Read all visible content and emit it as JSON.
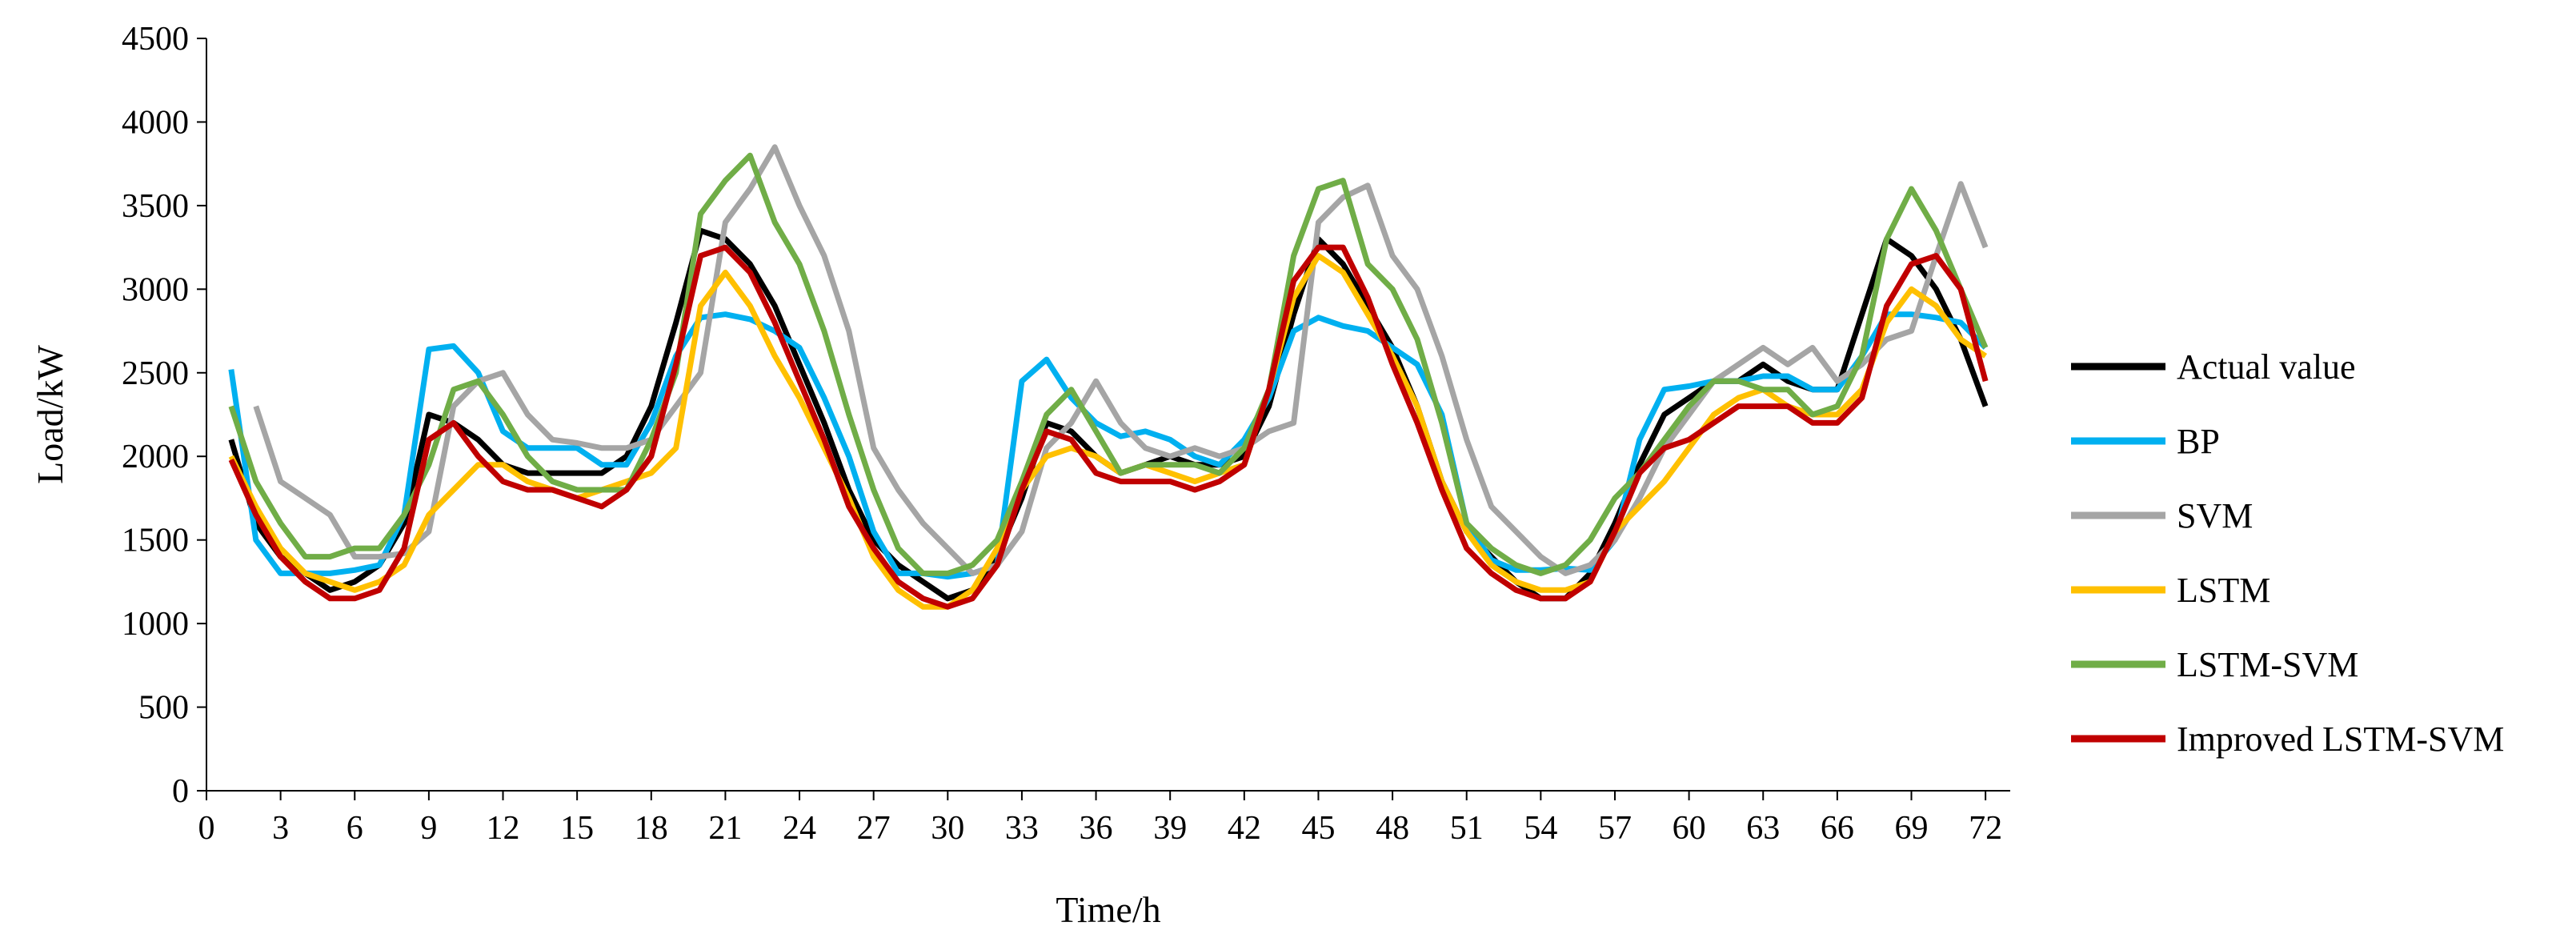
{
  "chart_data": {
    "type": "line",
    "title": "",
    "xlabel": "Time/h",
    "ylabel": "Load/kW",
    "xlim": [
      0,
      73
    ],
    "ylim": [
      0,
      4500
    ],
    "xticks": [
      0,
      3,
      6,
      9,
      12,
      15,
      18,
      21,
      24,
      27,
      30,
      33,
      36,
      39,
      42,
      45,
      48,
      51,
      54,
      57,
      60,
      63,
      66,
      69,
      72
    ],
    "yticks": [
      0,
      500,
      1000,
      1500,
      2000,
      2500,
      3000,
      3500,
      4000,
      4500
    ],
    "grid": false,
    "legend_position": "right",
    "x": [
      1,
      2,
      3,
      4,
      5,
      6,
      7,
      8,
      9,
      10,
      11,
      12,
      13,
      14,
      15,
      16,
      17,
      18,
      19,
      20,
      21,
      22,
      23,
      24,
      25,
      26,
      27,
      28,
      29,
      30,
      31,
      32,
      33,
      34,
      35,
      36,
      37,
      38,
      39,
      40,
      41,
      42,
      43,
      44,
      45,
      46,
      47,
      48,
      49,
      50,
      51,
      52,
      53,
      54,
      55,
      56,
      57,
      58,
      59,
      60,
      61,
      62,
      63,
      64,
      65,
      66,
      67,
      68,
      69,
      70,
      71,
      72
    ],
    "series": [
      {
        "name": "Actual value",
        "color": "#000000",
        "values": [
          2100,
          1600,
          1400,
          1300,
          1200,
          1250,
          1350,
          1600,
          2250,
          2200,
          2100,
          1950,
          1900,
          1900,
          1900,
          1900,
          2000,
          2300,
          2800,
          3350,
          3300,
          3150,
          2900,
          2550,
          2200,
          1800,
          1500,
          1350,
          1250,
          1150,
          1200,
          1400,
          1750,
          2200,
          2150,
          2000,
          1900,
          1950,
          2000,
          1950,
          1950,
          2000,
          2300,
          2850,
          3300,
          3150,
          2900,
          2650,
          2300,
          1850,
          1550,
          1400,
          1250,
          1150,
          1150,
          1300,
          1600,
          1950,
          2250,
          2350,
          2450,
          2450,
          2550,
          2450,
          2400,
          2400,
          2850,
          3300,
          3200,
          3000,
          2700,
          2300
        ]
      },
      {
        "name": "BP",
        "color": "#00B0F0",
        "values": [
          2520,
          1500,
          1300,
          1300,
          1300,
          1320,
          1350,
          1650,
          2640,
          2660,
          2500,
          2150,
          2050,
          2050,
          2050,
          1950,
          1950,
          2200,
          2600,
          2830,
          2850,
          2820,
          2750,
          2650,
          2350,
          2000,
          1550,
          1300,
          1300,
          1280,
          1300,
          1350,
          2450,
          2580,
          2350,
          2200,
          2120,
          2150,
          2100,
          2000,
          1950,
          2100,
          2350,
          2750,
          2830,
          2780,
          2750,
          2650,
          2550,
          2250,
          1600,
          1380,
          1320,
          1320,
          1330,
          1320,
          1500,
          2100,
          2400,
          2420,
          2450,
          2450,
          2480,
          2480,
          2400,
          2400,
          2600,
          2850,
          2850,
          2830,
          2800,
          2650
        ]
      },
      {
        "name": "SVM",
        "color": "#A5A5A5",
        "values": [
          null,
          2300,
          1850,
          1750,
          1650,
          1400,
          1400,
          1420,
          1550,
          2300,
          2450,
          2500,
          2250,
          2100,
          2080,
          2050,
          2050,
          2100,
          2300,
          2500,
          3400,
          3600,
          3850,
          3500,
          3200,
          2750,
          2050,
          1800,
          1600,
          1450,
          1300,
          1350,
          1550,
          2050,
          2200,
          2450,
          2200,
          2050,
          2000,
          2050,
          2000,
          2050,
          2150,
          2200,
          3400,
          3550,
          3620,
          3200,
          3000,
          2600,
          2100,
          1700,
          1550,
          1400,
          1300,
          1350,
          1500,
          1750,
          2050,
          2250,
          2450,
          2550,
          2650,
          2550,
          2650,
          2450,
          2550,
          2700,
          2750,
          3200,
          3630,
          3250
        ]
      },
      {
        "name": "LSTM",
        "color": "#FFC000",
        "values": [
          2000,
          1700,
          1450,
          1300,
          1250,
          1200,
          1250,
          1350,
          1650,
          1800,
          1950,
          1950,
          1850,
          1800,
          1750,
          1800,
          1850,
          1900,
          2050,
          2900,
          3100,
          2900,
          2600,
          2350,
          2050,
          1750,
          1400,
          1200,
          1100,
          1100,
          1200,
          1450,
          1800,
          2000,
          2050,
          2000,
          1900,
          1950,
          1900,
          1850,
          1900,
          1950,
          2400,
          2950,
          3200,
          3100,
          2850,
          2600,
          2300,
          1850,
          1550,
          1350,
          1250,
          1200,
          1200,
          1250,
          1550,
          1700,
          1850,
          2050,
          2250,
          2350,
          2400,
          2300,
          2250,
          2250,
          2400,
          2800,
          3000,
          2900,
          2700,
          2600
        ]
      },
      {
        "name": "LSTM-SVM",
        "color": "#70AD47",
        "values": [
          2300,
          1850,
          1600,
          1400,
          1400,
          1450,
          1450,
          1650,
          1950,
          2400,
          2450,
          2250,
          2000,
          1850,
          1800,
          1800,
          1800,
          2100,
          2500,
          3450,
          3650,
          3800,
          3400,
          3150,
          2750,
          2250,
          1800,
          1450,
          1300,
          1300,
          1350,
          1500,
          1850,
          2250,
          2400,
          2150,
          1900,
          1950,
          1950,
          1950,
          1900,
          2050,
          2400,
          3200,
          3600,
          3650,
          3150,
          3000,
          2700,
          2200,
          1600,
          1450,
          1350,
          1300,
          1350,
          1500,
          1750,
          1900,
          2100,
          2300,
          2450,
          2450,
          2400,
          2400,
          2250,
          2300,
          2600,
          3300,
          3600,
          3350,
          3000,
          2650
        ]
      },
      {
        "name": "Improved LSTM-SVM",
        "color": "#C00000",
        "values": [
          1980,
          1650,
          1400,
          1250,
          1150,
          1150,
          1200,
          1450,
          2100,
          2200,
          2000,
          1850,
          1800,
          1800,
          1750,
          1700,
          1800,
          2000,
          2550,
          3200,
          3250,
          3100,
          2800,
          2450,
          2100,
          1700,
          1450,
          1250,
          1150,
          1100,
          1150,
          1350,
          1800,
          2150,
          2100,
          1900,
          1850,
          1850,
          1850,
          1800,
          1850,
          1950,
          2400,
          3050,
          3250,
          3250,
          2950,
          2550,
          2200,
          1800,
          1450,
          1300,
          1200,
          1150,
          1150,
          1250,
          1550,
          1900,
          2050,
          2100,
          2200,
          2300,
          2300,
          2300,
          2200,
          2200,
          2350,
          2900,
          3150,
          3200,
          3000,
          2450
        ]
      }
    ]
  }
}
